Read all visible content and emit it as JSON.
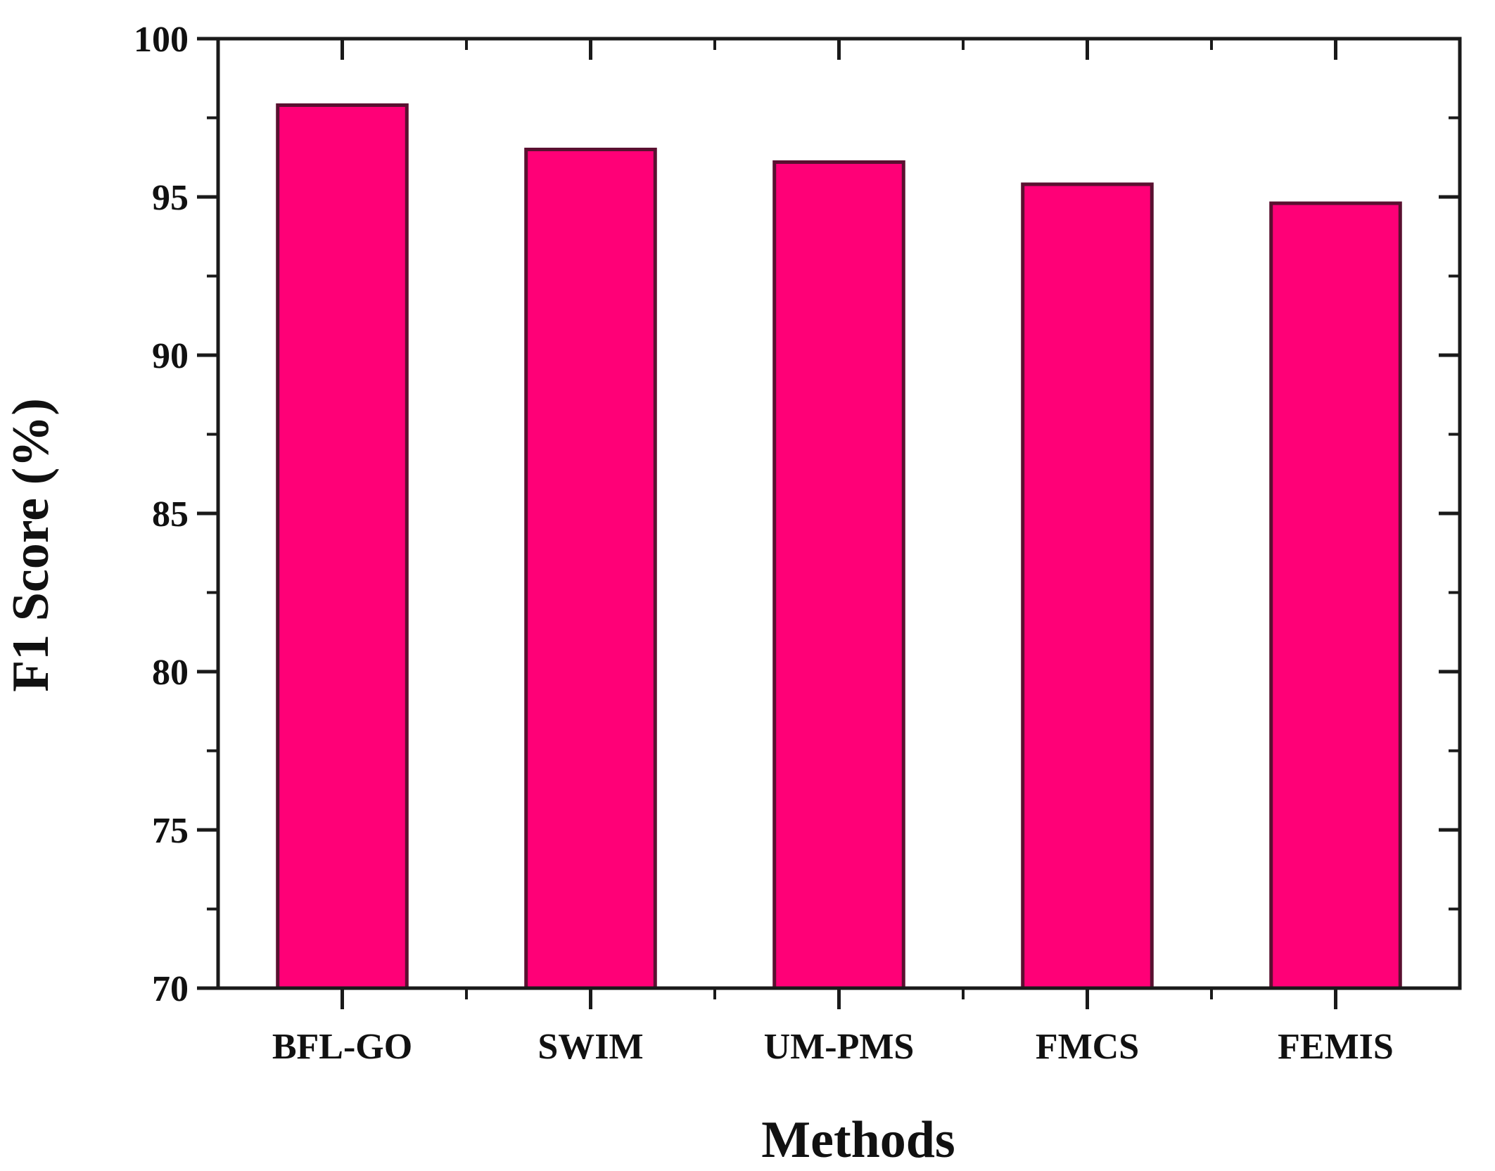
{
  "chart_data": {
    "type": "bar",
    "title": "",
    "xlabel": "Methods",
    "ylabel": "F1 Score (%)",
    "categories": [
      "BFL-GO",
      "SWIM",
      "UM-PMS",
      "FMCS",
      "FEMIS"
    ],
    "values": [
      97.9,
      96.5,
      96.1,
      95.4,
      94.8
    ],
    "ylim": [
      70,
      100
    ],
    "yticks": [
      70,
      75,
      80,
      85,
      90,
      95,
      100
    ],
    "grid": false,
    "legend": "none",
    "colors": {
      "bar": "#ff0077",
      "bar_edge": "#5a1030",
      "axis": "#1a1a1a"
    }
  }
}
